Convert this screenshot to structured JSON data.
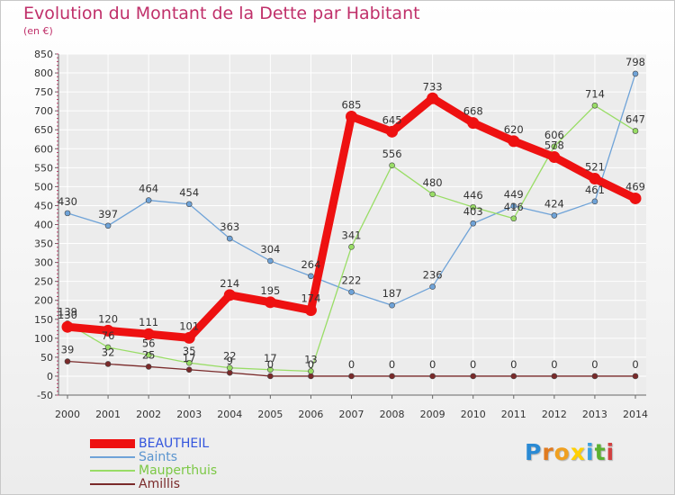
{
  "header": {
    "title": "Evolution du Montant de la Dette par Habitant",
    "subtitle": "(en €)"
  },
  "colors": {
    "title": "#c0306a",
    "axis": "#666666",
    "grid": "#ffffff",
    "plot_bg": "#ececec"
  },
  "logo": {
    "letters": [
      "P",
      "r",
      "o",
      "x",
      "i",
      "t",
      "i"
    ],
    "colors": [
      "#2a8ad4",
      "#e07a1f",
      "#f0a020",
      "#ffd000",
      "#3aa0e0",
      "#5bb030",
      "#d24040"
    ]
  },
  "chart_data": {
    "type": "line",
    "title": "Evolution du Montant de la Dette par Habitant",
    "ylabel": "(en €)",
    "xlabel": "",
    "x": [
      "2000",
      "2001",
      "2002",
      "2003",
      "2004",
      "2005",
      "2006",
      "2007",
      "2008",
      "2009",
      "2010",
      "2011",
      "2012",
      "2013",
      "2014"
    ],
    "ylim": [
      -50,
      850
    ],
    "yticks": [
      -50,
      0,
      50,
      100,
      150,
      200,
      250,
      300,
      350,
      400,
      450,
      500,
      550,
      600,
      650,
      700,
      750,
      800,
      850
    ],
    "grid": true,
    "legend_position": "bottom-left",
    "series": [
      {
        "name": "BEAUTHEIL",
        "color": "#ee1111",
        "label_color": "#3355dd",
        "values": [
          130,
          120,
          111,
          101,
          214,
          195,
          174,
          685,
          645,
          733,
          668,
          620,
          578,
          521,
          469
        ]
      },
      {
        "name": "Saints",
        "color": "#6fa3d8",
        "label_color": "#5b95cf",
        "values": [
          430,
          397,
          464,
          454,
          363,
          304,
          264,
          222,
          187,
          236,
          403,
          449,
          424,
          461,
          798
        ]
      },
      {
        "name": "Mauperthuis",
        "color": "#99dd66",
        "label_color": "#7cc845",
        "values": [
          139,
          76,
          56,
          35,
          22,
          17,
          13,
          341,
          556,
          480,
          446,
          416,
          606,
          714,
          647
        ]
      },
      {
        "name": "Amillis",
        "color": "#7a2a2a",
        "label_color": "#7a2a2a",
        "values": [
          39,
          32,
          25,
          17,
          9,
          0,
          0,
          0,
          0,
          0,
          0,
          0,
          0,
          0,
          0
        ]
      }
    ]
  }
}
